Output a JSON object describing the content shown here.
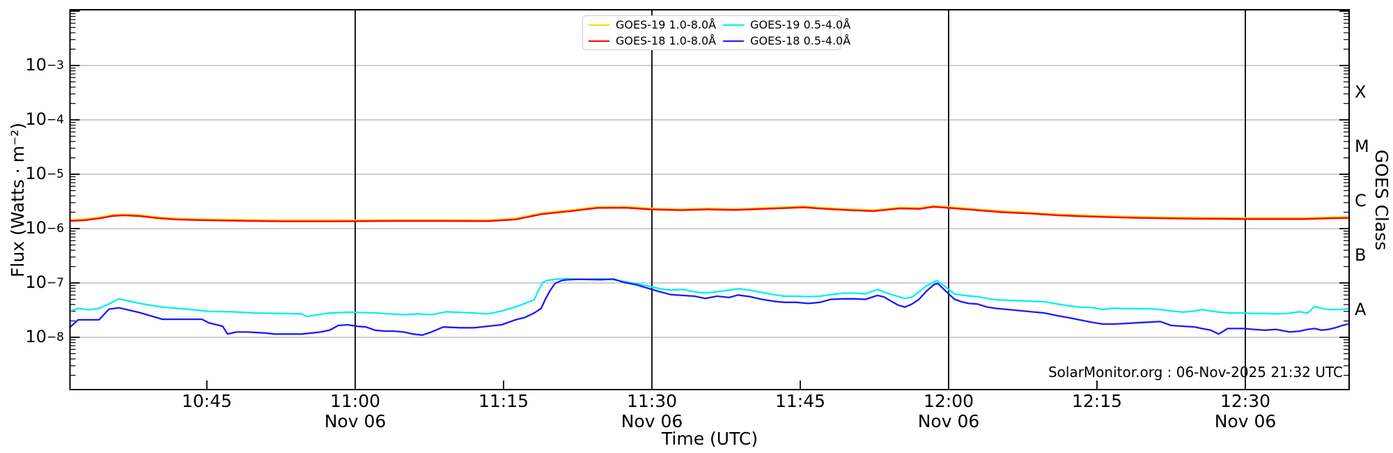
{
  "figure": {
    "footer_credit": "SolarMonitor.org : 06-Nov-2025 21:32 UTC"
  },
  "chart_data": {
    "type": "line",
    "title": "",
    "xlabel": "Time (UTC)",
    "ylabel": "Flux (Watts · m⁻²)",
    "ylabel_right": "GOES Class",
    "x_axis": {
      "unit": "minutes after 10:30 UTC, 06-Nov-2025",
      "range": [
        1.1,
        130.5
      ],
      "date": "Nov 06"
    },
    "y_axis": {
      "scale": "log",
      "range": [
        1.1e-09,
        0.0107
      ],
      "tick_exponents": [
        -3,
        -4,
        -5,
        -6,
        -7,
        -8
      ],
      "grid": true
    },
    "grid_color": "#b0b0b0",
    "x_ticks": [
      {
        "m": 15,
        "label": "10:45",
        "date": "",
        "grid": false
      },
      {
        "m": 30,
        "label": "11:00",
        "date": "Nov 06",
        "grid": true
      },
      {
        "m": 45,
        "label": "11:15",
        "date": "",
        "grid": false
      },
      {
        "m": 60,
        "label": "11:30",
        "date": "Nov 06",
        "grid": true
      },
      {
        "m": 75,
        "label": "11:45",
        "date": "",
        "grid": false
      },
      {
        "m": 90,
        "label": "12:00",
        "date": "Nov 06",
        "grid": true
      },
      {
        "m": 105,
        "label": "12:15",
        "date": "",
        "grid": false
      },
      {
        "m": 120,
        "label": "12:30",
        "date": "Nov 06",
        "grid": true
      }
    ],
    "goes_class_labels": [
      {
        "label": "X",
        "flux": 0.000316
      },
      {
        "label": "M",
        "flux": 3.16e-05
      },
      {
        "label": "C",
        "flux": 3.16e-06
      },
      {
        "label": "B",
        "flux": 3.16e-07
      },
      {
        "label": "A",
        "flux": 3.16e-08
      }
    ],
    "legend": [
      {
        "label": "GOES-19 1.0-8.0Å",
        "color": "#ffd700"
      },
      {
        "label": "GOES-18 1.0-8.0Å",
        "color": "#ff0000"
      },
      {
        "label": "GOES-19 0.5-4.0Å",
        "color": "#00f0f0"
      },
      {
        "label": "GOES-18 0.5-4.0Å",
        "color": "#1a1aff"
      }
    ],
    "legend_position": "upper center",
    "series": [
      {
        "name": "GOES-19 1.0-8.0Å",
        "color": "#ffd700",
        "note": "not separately resolvable in image; lies directly beneath the GOES-18 1.0-8.0Å trace",
        "points": []
      },
      {
        "name": "GOES-18 1.0-8.0Å",
        "color": "#ff0000",
        "points": [
          [
            1.1,
            1.38e-06
          ],
          [
            2.7,
            1.43e-06
          ],
          [
            4.3,
            1.56e-06
          ],
          [
            5.4,
            1.7e-06
          ],
          [
            6.5,
            1.76e-06
          ],
          [
            8.2,
            1.7e-06
          ],
          [
            10,
            1.56e-06
          ],
          [
            11.9,
            1.47e-06
          ],
          [
            14.6,
            1.43e-06
          ],
          [
            17.3,
            1.4e-06
          ],
          [
            22.7,
            1.36e-06
          ],
          [
            28.1,
            1.36e-06
          ],
          [
            33.5,
            1.38e-06
          ],
          [
            38.9,
            1.38e-06
          ],
          [
            43.4,
            1.37e-06
          ],
          [
            46.2,
            1.47e-06
          ],
          [
            48.9,
            1.85e-06
          ],
          [
            51.8,
            2.1e-06
          ],
          [
            54.5,
            2.4e-06
          ],
          [
            57.3,
            2.42e-06
          ],
          [
            59.9,
            2.25e-06
          ],
          [
            62.9,
            2.18e-06
          ],
          [
            65.6,
            2.25e-06
          ],
          [
            68.4,
            2.2e-06
          ],
          [
            71.2,
            2.3e-06
          ],
          [
            74,
            2.4e-06
          ],
          [
            75.4,
            2.46e-06
          ],
          [
            76.8,
            2.35e-06
          ],
          [
            79.6,
            2.2e-06
          ],
          [
            82.4,
            2.1e-06
          ],
          [
            85.1,
            2.35e-06
          ],
          [
            87,
            2.3e-06
          ],
          [
            88.5,
            2.52e-06
          ],
          [
            90,
            2.4e-06
          ],
          [
            92.6,
            2.2e-06
          ],
          [
            95.4,
            2e-06
          ],
          [
            98.2,
            1.9e-06
          ],
          [
            101,
            1.76e-06
          ],
          [
            103.7,
            1.68e-06
          ],
          [
            106.5,
            1.62e-06
          ],
          [
            109.3,
            1.57e-06
          ],
          [
            114.8,
            1.52e-06
          ],
          [
            119.8,
            1.5e-06
          ],
          [
            126,
            1.5e-06
          ],
          [
            128.7,
            1.55e-06
          ],
          [
            130.4,
            1.57e-06
          ]
        ]
      },
      {
        "name": "GOES-19 0.5-4.0Å",
        "color": "#00f0f0",
        "points": [
          [
            1.1,
            3e-08
          ],
          [
            2,
            3.4e-08
          ],
          [
            3,
            3.2e-08
          ],
          [
            4.1,
            3.4e-08
          ],
          [
            5.1,
            4.1e-08
          ],
          [
            6.1,
            5.1e-08
          ],
          [
            8.2,
            4.2e-08
          ],
          [
            10.5,
            3.6e-08
          ],
          [
            13,
            3.3e-08
          ],
          [
            15.2,
            3e-08
          ],
          [
            17.5,
            2.95e-08
          ],
          [
            19.9,
            2.8e-08
          ],
          [
            22.3,
            2.75e-08
          ],
          [
            24.6,
            2.7e-08
          ],
          [
            25.1,
            2.4e-08
          ],
          [
            27,
            2.75e-08
          ],
          [
            29.3,
            2.9e-08
          ],
          [
            32.1,
            2.8e-08
          ],
          [
            34.9,
            2.6e-08
          ],
          [
            36.3,
            2.7e-08
          ],
          [
            37.7,
            2.6e-08
          ],
          [
            39.2,
            2.95e-08
          ],
          [
            42,
            2.8e-08
          ],
          [
            43.4,
            2.7e-08
          ],
          [
            44.8,
            3.05e-08
          ],
          [
            45.7,
            3.4e-08
          ],
          [
            46.7,
            3.9e-08
          ],
          [
            48.1,
            4.9e-08
          ],
          [
            48.5,
            7.2e-08
          ],
          [
            49,
            1.04e-07
          ],
          [
            49.5,
            1.12e-07
          ],
          [
            50.2,
            1.17e-07
          ],
          [
            51.3,
            1.2e-07
          ],
          [
            52.5,
            1.16e-07
          ],
          [
            54.9,
            1.19e-07
          ],
          [
            56.1,
            1.15e-07
          ],
          [
            57.2,
            1.06e-07
          ],
          [
            58.4,
            9.7e-08
          ],
          [
            59.6,
            8.8e-08
          ],
          [
            60.8,
            7.8e-08
          ],
          [
            61.9,
            7.4e-08
          ],
          [
            63.1,
            7.6e-08
          ],
          [
            64.3,
            6.9e-08
          ],
          [
            65.4,
            6.5e-08
          ],
          [
            66.6,
            6.9e-08
          ],
          [
            67.8,
            7.4e-08
          ],
          [
            68.7,
            7.8e-08
          ],
          [
            69.9,
            7.4e-08
          ],
          [
            71.1,
            6.7e-08
          ],
          [
            72.3,
            6.1e-08
          ],
          [
            73.4,
            5.7e-08
          ],
          [
            74.6,
            5.7e-08
          ],
          [
            75.8,
            5.6e-08
          ],
          [
            77,
            5.7e-08
          ],
          [
            78.1,
            6.1e-08
          ],
          [
            79.3,
            6.5e-08
          ],
          [
            80.5,
            6.5e-08
          ],
          [
            81.6,
            6.3e-08
          ],
          [
            82.8,
            7.6e-08
          ],
          [
            83.5,
            6.8e-08
          ],
          [
            84.2,
            6.1e-08
          ],
          [
            85.6,
            5.2e-08
          ],
          [
            86.3,
            5.5e-08
          ],
          [
            87,
            6.9e-08
          ],
          [
            87.7,
            8.7e-08
          ],
          [
            88.5,
            1.04e-07
          ],
          [
            88.8,
            1.11e-07
          ],
          [
            89.2,
            9.9e-08
          ],
          [
            90,
            7.6e-08
          ],
          [
            90.6,
            6.3e-08
          ],
          [
            91.3,
            6e-08
          ],
          [
            92,
            5.8e-08
          ],
          [
            92.9,
            5.6e-08
          ],
          [
            93.9,
            5.2e-08
          ],
          [
            94.8,
            4.9e-08
          ],
          [
            99.7,
            4.5e-08
          ],
          [
            101,
            4.1e-08
          ],
          [
            102.1,
            3.8e-08
          ],
          [
            103.2,
            3.6e-08
          ],
          [
            104.4,
            3.55e-08
          ],
          [
            105.6,
            3.25e-08
          ],
          [
            106.7,
            3.45e-08
          ],
          [
            107.9,
            3.35e-08
          ],
          [
            110.2,
            3.35e-08
          ],
          [
            111.4,
            3.25e-08
          ],
          [
            112.5,
            3.05e-08
          ],
          [
            113.7,
            2.9e-08
          ],
          [
            114.9,
            3.05e-08
          ],
          [
            115.6,
            3.25e-08
          ],
          [
            116,
            3.15e-08
          ],
          [
            117.3,
            2.9e-08
          ],
          [
            118.5,
            2.8e-08
          ],
          [
            119.8,
            2.8e-08
          ],
          [
            120.8,
            2.75e-08
          ],
          [
            122,
            2.75e-08
          ],
          [
            123.1,
            2.7e-08
          ],
          [
            124.3,
            2.75e-08
          ],
          [
            125.5,
            2.95e-08
          ],
          [
            126.3,
            2.8e-08
          ],
          [
            127,
            3.7e-08
          ],
          [
            127.7,
            3.4e-08
          ],
          [
            128.4,
            3.25e-08
          ],
          [
            129.5,
            3.25e-08
          ],
          [
            130.4,
            3.35e-08
          ]
        ]
      },
      {
        "name": "GOES-18 0.5-4.0Å",
        "color": "#1a1aff",
        "points": [
          [
            1.1,
            1.5e-08
          ],
          [
            2,
            2.1e-08
          ],
          [
            4.1,
            2.1e-08
          ],
          [
            5.1,
            3.3e-08
          ],
          [
            6.1,
            3.5e-08
          ],
          [
            8.2,
            2.85e-08
          ],
          [
            10.5,
            2.15e-08
          ],
          [
            13,
            2.15e-08
          ],
          [
            14.5,
            2.15e-08
          ],
          [
            15.2,
            1.85e-08
          ],
          [
            16.6,
            1.6e-08
          ],
          [
            17.1,
            1.15e-08
          ],
          [
            18,
            1.25e-08
          ],
          [
            19,
            1.25e-08
          ],
          [
            20.9,
            1.2e-08
          ],
          [
            21.8,
            1.15e-08
          ],
          [
            23.2,
            1.15e-08
          ],
          [
            24.6,
            1.15e-08
          ],
          [
            25.6,
            1.2e-08
          ],
          [
            26.5,
            1.25e-08
          ],
          [
            27.4,
            1.35e-08
          ],
          [
            28.3,
            1.65e-08
          ],
          [
            29.2,
            1.7e-08
          ],
          [
            30.2,
            1.6e-08
          ],
          [
            31.1,
            1.55e-08
          ],
          [
            32,
            1.35e-08
          ],
          [
            33,
            1.3e-08
          ],
          [
            33.9,
            1.3e-08
          ],
          [
            34.9,
            1.25e-08
          ],
          [
            35.8,
            1.15e-08
          ],
          [
            36.8,
            1.1e-08
          ],
          [
            37.7,
            1.25e-08
          ],
          [
            38.9,
            1.55e-08
          ],
          [
            40.6,
            1.5e-08
          ],
          [
            42,
            1.5e-08
          ],
          [
            43.4,
            1.6e-08
          ],
          [
            44.8,
            1.7e-08
          ],
          [
            46.2,
            2.1e-08
          ],
          [
            47.1,
            2.3e-08
          ],
          [
            48.1,
            2.8e-08
          ],
          [
            48.8,
            3.4e-08
          ],
          [
            49.2,
            4.9e-08
          ],
          [
            49.7,
            7.2e-08
          ],
          [
            50.2,
            9.8e-08
          ],
          [
            50.9,
            1.11e-07
          ],
          [
            51.3,
            1.14e-07
          ],
          [
            52.5,
            1.17e-07
          ],
          [
            54.9,
            1.15e-07
          ],
          [
            56.1,
            1.18e-07
          ],
          [
            57.2,
            1.02e-07
          ],
          [
            58.4,
            9.3e-08
          ],
          [
            59.6,
            8e-08
          ],
          [
            60.8,
            6.9e-08
          ],
          [
            61.9,
            6.1e-08
          ],
          [
            63.1,
            5.9e-08
          ],
          [
            64.3,
            5.7e-08
          ],
          [
            65.4,
            5.2e-08
          ],
          [
            66.6,
            5.7e-08
          ],
          [
            67.8,
            5.4e-08
          ],
          [
            68.7,
            6e-08
          ],
          [
            69.9,
            5.6e-08
          ],
          [
            71.1,
            5e-08
          ],
          [
            72.3,
            4.6e-08
          ],
          [
            73.4,
            4.4e-08
          ],
          [
            74.6,
            4.4e-08
          ],
          [
            75.8,
            4.2e-08
          ],
          [
            77,
            4.4e-08
          ],
          [
            78.1,
            5e-08
          ],
          [
            79.3,
            5.1e-08
          ],
          [
            80.5,
            5.1e-08
          ],
          [
            81.6,
            5e-08
          ],
          [
            82.8,
            5.9e-08
          ],
          [
            83.5,
            5.5e-08
          ],
          [
            84.2,
            4.6e-08
          ],
          [
            84.9,
            3.9e-08
          ],
          [
            85.6,
            3.6e-08
          ],
          [
            86.3,
            4.1e-08
          ],
          [
            87,
            5e-08
          ],
          [
            87.7,
            6.9e-08
          ],
          [
            88.5,
            9.3e-08
          ],
          [
            88.9,
            9.8e-08
          ],
          [
            89.2,
            8.7e-08
          ],
          [
            90,
            6.3e-08
          ],
          [
            90.6,
            5e-08
          ],
          [
            91.3,
            4.5e-08
          ],
          [
            92,
            4.2e-08
          ],
          [
            92.9,
            4.1e-08
          ],
          [
            93.9,
            3.6e-08
          ],
          [
            94.8,
            3.4e-08
          ],
          [
            99.7,
            2.8e-08
          ],
          [
            101,
            2.5e-08
          ],
          [
            102.1,
            2.3e-08
          ],
          [
            103.2,
            2.1e-08
          ],
          [
            104.4,
            1.9e-08
          ],
          [
            105.6,
            1.75e-08
          ],
          [
            106.7,
            1.75e-08
          ],
          [
            107.9,
            1.8e-08
          ],
          [
            109,
            1.85e-08
          ],
          [
            110.2,
            1.9e-08
          ],
          [
            111.4,
            1.95e-08
          ],
          [
            112.5,
            1.65e-08
          ],
          [
            113.7,
            1.6e-08
          ],
          [
            114.9,
            1.55e-08
          ],
          [
            115.6,
            1.45e-08
          ],
          [
            116.5,
            1.35e-08
          ],
          [
            117.3,
            1.15e-08
          ],
          [
            117.8,
            1.3e-08
          ],
          [
            118.2,
            1.45e-08
          ],
          [
            119.8,
            1.45e-08
          ],
          [
            120.8,
            1.4e-08
          ],
          [
            122,
            1.35e-08
          ],
          [
            123.1,
            1.4e-08
          ],
          [
            124.5,
            1.25e-08
          ],
          [
            125.5,
            1.3e-08
          ],
          [
            126.3,
            1.4e-08
          ],
          [
            127,
            1.45e-08
          ],
          [
            127.7,
            1.35e-08
          ],
          [
            128.4,
            1.4e-08
          ],
          [
            129.1,
            1.5e-08
          ],
          [
            129.8,
            1.65e-08
          ],
          [
            130.4,
            1.75e-08
          ]
        ]
      }
    ]
  }
}
